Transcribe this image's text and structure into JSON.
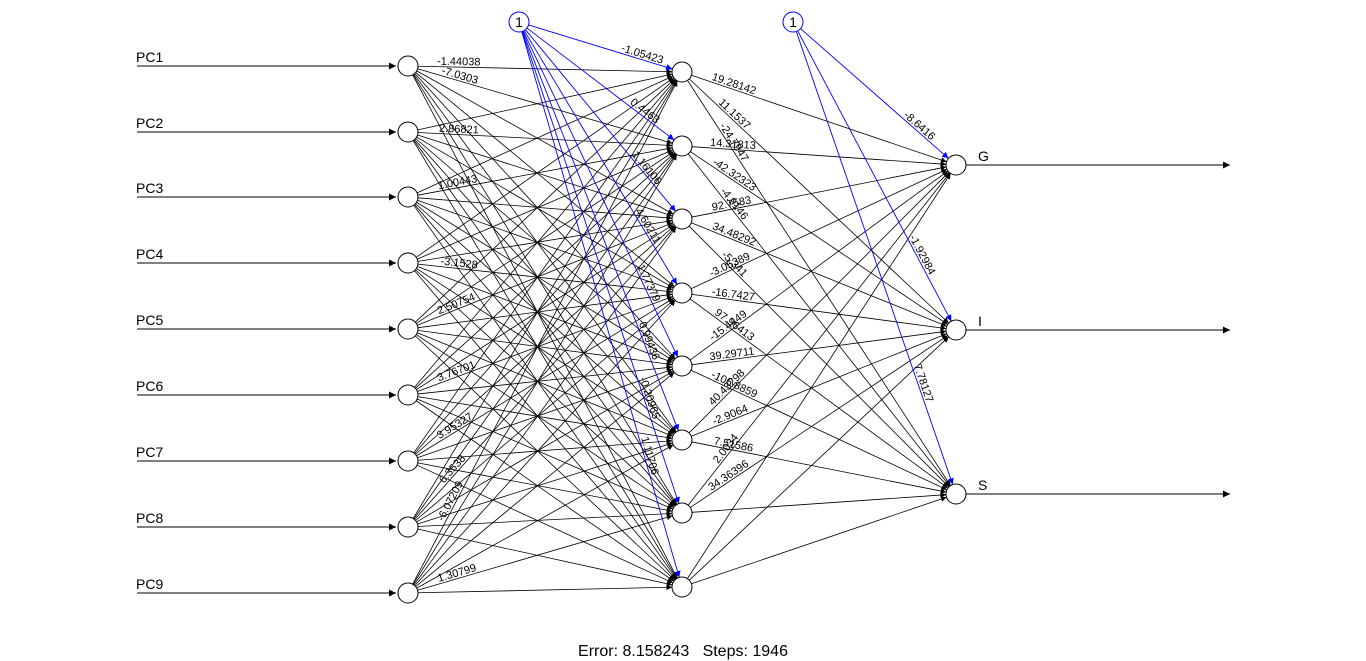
{
  "colors": {
    "weights": "#000000",
    "bias": "#0000ff",
    "background": "#ffffff"
  },
  "network": {
    "inputs": [
      "PC1",
      "PC2",
      "PC3",
      "PC4",
      "PC5",
      "PC6",
      "PC7",
      "PC8",
      "PC9"
    ],
    "hidden_count": 8,
    "outputs": [
      "G",
      "I",
      "S"
    ],
    "bias_label": "1",
    "input_weight_labels": [
      "-1.44038",
      "-7.0303",
      "2.86821",
      "1.00443",
      "-3.1528",
      "2.50754",
      "3.76701",
      "3.95327",
      "6.3538",
      "1.30799",
      "-6.07209"
    ],
    "bias_hidden_labels": [
      "-1.05423",
      "0.4463",
      "1.16106",
      "4.60211",
      "1.77379",
      "0.99436",
      "-0.20965",
      "1.11706"
    ],
    "hidden_output_labels": [
      "19.28142",
      "11.1537",
      "-24.7947",
      "14.31813",
      "-42.32323",
      "-4.9146",
      "92.7583",
      "34.48292",
      "-5.341",
      "-3.05389",
      "-16.7427",
      "97.96413",
      "-15.4449",
      "39.29711",
      "-106.8859",
      "40.43298",
      "-2.9064",
      "7.51586",
      "2.0034",
      "34.36396"
    ],
    "bias_output_labels": [
      "-8.6416",
      "-1.92984",
      "7.78127"
    ]
  },
  "footer": {
    "error_label": "Error:",
    "error_value": "8.158243",
    "steps_label": "Steps:",
    "steps_value": "1946"
  }
}
